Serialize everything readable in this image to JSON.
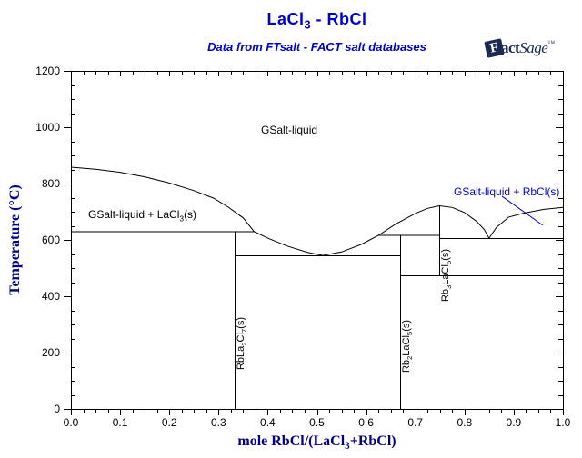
{
  "page": {
    "background": "#FFFFFF"
  },
  "logo": {
    "f": "F",
    "act": "act",
    "sage": "Sage",
    "tm": "™",
    "color": "#1B2A55"
  },
  "colors": {
    "title_blue": "#0000CC",
    "axis_navy": "#000080",
    "line_black": "#000000",
    "region_label_blue": "#0000CC",
    "background": "#FFFFFF"
  },
  "chart_data": {
    "type": "line",
    "title": "LaCl_3_ - RbCl",
    "subtitle": "Data from FTsalt - FACT salt databases",
    "xlabel": "mole RbCl/(LaCl_3_+RbCl)",
    "ylabel": "Temperature (°C)",
    "xlim": [
      0.0,
      1.0
    ],
    "ylim": [
      0,
      1200
    ],
    "grid": false,
    "legend": false,
    "x_ticks": {
      "major": [
        0,
        0.1,
        0.2,
        0.3,
        0.4,
        0.5,
        0.6,
        0.7,
        0.8,
        0.9,
        1.0
      ],
      "labels": [
        "0.0",
        "0.1",
        "0.2",
        "0.3",
        "0.4",
        "0.5",
        "0.6",
        "0.7",
        "0.8",
        "0.9",
        "1.0"
      ],
      "minor_step": 0.025
    },
    "y_ticks": {
      "major": [
        0,
        200,
        400,
        600,
        800,
        1000,
        1200
      ],
      "labels": [
        "0",
        "200",
        "400",
        "600",
        "800",
        "1000",
        "1200"
      ],
      "minor_step": 50
    },
    "boundaries": {
      "liquidus": [
        [
          0.0,
          858
        ],
        [
          0.05,
          851
        ],
        [
          0.1,
          840
        ],
        [
          0.15,
          824
        ],
        [
          0.2,
          802
        ],
        [
          0.25,
          775
        ],
        [
          0.29,
          748
        ],
        [
          0.32,
          716
        ],
        [
          0.35,
          678
        ],
        [
          0.372,
          630
        ],
        [
          0.4,
          606
        ],
        [
          0.44,
          578
        ],
        [
          0.48,
          556
        ],
        [
          0.512,
          545
        ],
        [
          0.55,
          557
        ],
        [
          0.59,
          584
        ],
        [
          0.626,
          617
        ],
        [
          0.66,
          656
        ],
        [
          0.7,
          694
        ],
        [
          0.725,
          712
        ],
        [
          0.749,
          721
        ],
        [
          0.775,
          715
        ],
        [
          0.8,
          697
        ],
        [
          0.825,
          665
        ],
        [
          0.84,
          637
        ],
        [
          0.85,
          606
        ],
        [
          0.865,
          645
        ],
        [
          0.89,
          681
        ],
        [
          0.92,
          695
        ],
        [
          0.96,
          708
        ],
        [
          1.0,
          715
        ]
      ],
      "isotherms": [
        {
          "T": 630,
          "x": [
            0.0,
            0.372
          ]
        },
        {
          "T": 545,
          "x": [
            0.333,
            0.669
          ]
        },
        {
          "T": 617,
          "x": [
            0.626,
            0.749
          ]
        },
        {
          "T": 606,
          "x": [
            0.749,
            1.0
          ]
        },
        {
          "T": 475,
          "x": [
            0.669,
            1.0
          ]
        }
      ],
      "compound_lines": [
        {
          "x": 0.333,
          "T": [
            0,
            630
          ],
          "formula": "RbLa_2_Cl_7_(s)"
        },
        {
          "x": 0.669,
          "T": [
            0,
            617
          ],
          "formula": "Rb_2_LaCl_5_(s)"
        },
        {
          "x": 0.749,
          "T": [
            475,
            721
          ],
          "formula": "Rb_3_LaCl_6_(s)"
        }
      ]
    },
    "special_points": {
      "pure_melting": [
        {
          "name": "LaCl_3_",
          "T": 858
        },
        {
          "name": "RbCl",
          "T": 715
        }
      ],
      "congruent_melting": [
        {
          "x": 0.749,
          "T": 721
        }
      ],
      "eutectics": [
        {
          "x": 0.512,
          "T": 545
        },
        {
          "x": 0.85,
          "T": 606
        }
      ],
      "peritectics": [
        {
          "x": 0.372,
          "T": 630
        },
        {
          "x": 0.626,
          "T": 617
        }
      ]
    },
    "leader_line": {
      "from": [
        0.876,
        755
      ],
      "to": [
        0.959,
        652
      ],
      "color": "#0000CC"
    },
    "regions": [
      {
        "label": "GSalt-liquid",
        "color": "#000000"
      },
      {
        "label": "GSalt-liquid + LaCl_3_(s)",
        "color": "#000000"
      },
      {
        "label": "GSalt-liquid + RbCl(s)",
        "color": "#0000CC"
      },
      {
        "label": "RbLa_2_Cl_7_(s)",
        "color": "#000000"
      },
      {
        "label": "Rb_2_LaCl_5_(s)",
        "color": "#000000"
      },
      {
        "label": "Rb_3_LaCl_6_(s)",
        "color": "#000000"
      }
    ]
  }
}
